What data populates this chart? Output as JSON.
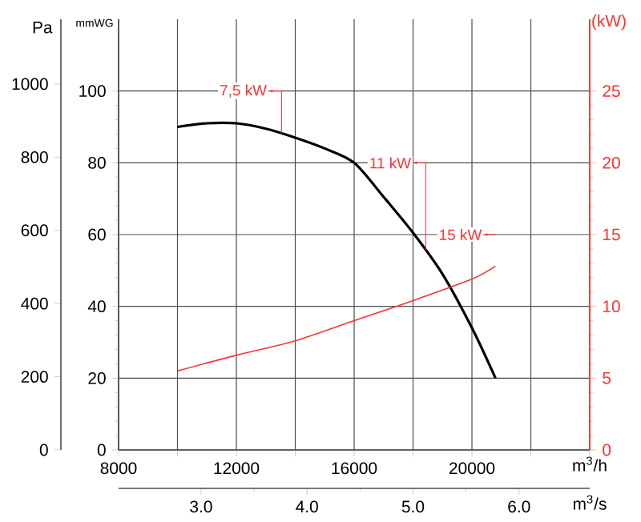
{
  "chart_data": {
    "type": "line",
    "xlabel": "m$^{3}$/h",
    "x2label": "m$^{3}$/s",
    "ylabel": "mmWG",
    "y2label": "(kW)",
    "y3label": "Pa",
    "xlim": [
      8000,
      24000
    ],
    "xticks": [
      8000,
      {
        "value": 10000,
        "label": null
      },
      12000,
      {
        "value": 14000,
        "label": null
      },
      16000,
      {
        "value": 18000,
        "label": null
      },
      20000,
      {
        "value": 22000,
        "label": null
      },
      {
        "value": 24000,
        "label": null
      }
    ],
    "x2lim": [
      2.2222,
      6.6667
    ],
    "x2ticks": [
      {
        "value": 3,
        "label": "3.0"
      },
      {
        "value": 4,
        "label": "4.0"
      },
      {
        "value": 5,
        "label": "5.0"
      },
      {
        "value": 6,
        "label": "6.0"
      }
    ],
    "ylim": [
      0,
      120
    ],
    "yticks": [
      0,
      20,
      40,
      60,
      80,
      100
    ],
    "y2lim": [
      0,
      30
    ],
    "y2ticks": [
      0,
      5,
      10,
      15,
      20,
      25
    ],
    "y3lim": [
      0,
      1177
    ],
    "y3ticks": [
      0,
      200,
      400,
      600,
      800,
      1000
    ],
    "grid": true,
    "series": [
      {
        "color": "#000000",
        "x": [
          10000,
          11000,
          12000,
          13000,
          14000,
          15000,
          16000,
          17000,
          18000,
          19000,
          20000,
          20800
        ],
        "values": [
          90,
          91,
          91,
          89.5,
          87,
          84,
          80,
          70.5,
          60.5,
          49,
          34,
          20
        ]
      },
      {
        "color": "#ff3030",
        "axis": "y2",
        "x": [
          10000,
          12000,
          14000,
          16000,
          18000,
          20000,
          20800
        ],
        "values": [
          5.5,
          6.6,
          7.6,
          9.0,
          10.4,
          11.9,
          12.8
        ]
      }
    ],
    "annotations": [
      {
        "text": "7,5 kW",
        "x": 13100,
        "y": 100
      },
      {
        "text": "11 kW",
        "x": 18000,
        "y": 80
      },
      {
        "text": "15 kW",
        "x": 20400,
        "y": 60
      }
    ]
  }
}
